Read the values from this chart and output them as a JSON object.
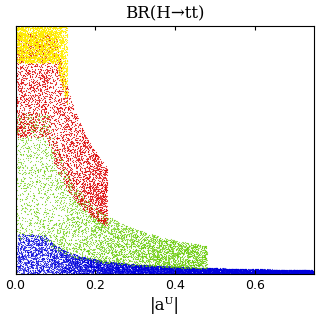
{
  "title": "BR(H→tt)",
  "xlabel": "|aᵁ|",
  "xlim": [
    0,
    0.75
  ],
  "ylim": [
    0,
    1.0
  ],
  "xticks": [
    0.0,
    0.2,
    0.4,
    0.6
  ],
  "yticks": [],
  "background_color": "#ffffff",
  "seed": 42,
  "n_points_blue": 9000,
  "n_points_green": 5000,
  "n_points_red": 4000,
  "n_points_yellow": 2500,
  "blue_color": "#0000dd",
  "green_color": "#66cc00",
  "red_color": "#dd0000",
  "yellow_color": "#ffee00",
  "figsize": [
    3.2,
    3.2
  ],
  "dpi": 100
}
